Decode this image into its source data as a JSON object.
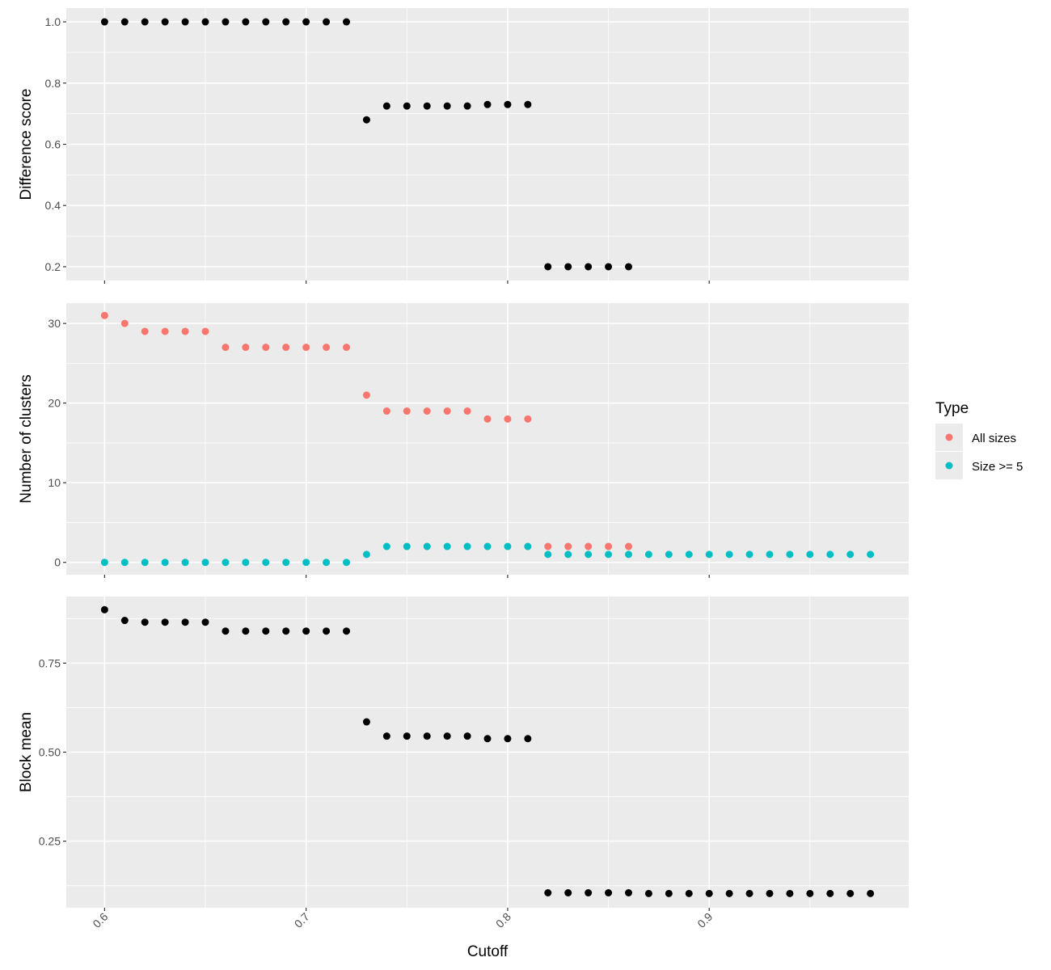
{
  "chart_data": {
    "type": "scatter",
    "xlabel": "Cutoff",
    "x_ticks": [
      "0.6",
      "0.7",
      "0.8",
      "0.9"
    ],
    "x_tick_values": [
      0.6,
      0.7,
      0.8,
      0.9
    ],
    "xlim": [
      0.581,
      0.999
    ],
    "grid": true,
    "legend": {
      "title": "Type",
      "placement": "right",
      "entries": [
        {
          "label": "All sizes",
          "color": "#F8766D"
        },
        {
          "label": "Size >= 5",
          "color": "#00BFC4"
        }
      ]
    },
    "panels": [
      {
        "ylabel": "Difference score",
        "ylim": [
          0.155,
          1.045
        ],
        "y_ticks": [
          "0.2",
          "0.4",
          "0.6",
          "0.8",
          "1.0"
        ],
        "y_tick_values": [
          0.2,
          0.4,
          0.6,
          0.8,
          1.0
        ],
        "series": [
          {
            "color": "#000000",
            "x": [
              0.6,
              0.61,
              0.62,
              0.63,
              0.64,
              0.65,
              0.66,
              0.67,
              0.68,
              0.69,
              0.7,
              0.71,
              0.72,
              0.73,
              0.74,
              0.75,
              0.76,
              0.77,
              0.78,
              0.79,
              0.8,
              0.81,
              0.82,
              0.83,
              0.84,
              0.85,
              0.86
            ],
            "y": [
              1.0,
              1.0,
              1.0,
              1.0,
              1.0,
              1.0,
              1.0,
              1.0,
              1.0,
              1.0,
              1.0,
              1.0,
              1.0,
              0.68,
              0.725,
              0.725,
              0.725,
              0.725,
              0.725,
              0.73,
              0.73,
              0.73,
              0.2,
              0.2,
              0.2,
              0.2,
              0.2
            ]
          }
        ]
      },
      {
        "ylabel": "Number of clusters",
        "ylim": [
          -1.55,
          32.55
        ],
        "y_ticks": [
          "0",
          "10",
          "20",
          "30"
        ],
        "y_tick_values": [
          0,
          10,
          20,
          30
        ],
        "series": [
          {
            "name": "All sizes",
            "color": "#F8766D",
            "x": [
              0.6,
              0.61,
              0.62,
              0.63,
              0.64,
              0.65,
              0.66,
              0.67,
              0.68,
              0.69,
              0.7,
              0.71,
              0.72,
              0.73,
              0.74,
              0.75,
              0.76,
              0.77,
              0.78,
              0.79,
              0.8,
              0.81,
              0.82,
              0.83,
              0.84,
              0.85,
              0.86
            ],
            "y": [
              31,
              30,
              29,
              29,
              29,
              29,
              27,
              27,
              27,
              27,
              27,
              27,
              27,
              21,
              19,
              19,
              19,
              19,
              19,
              18,
              18,
              18,
              2,
              2,
              2,
              2,
              2
            ]
          },
          {
            "name": "Size >= 5",
            "color": "#00BFC4",
            "x": [
              0.6,
              0.61,
              0.62,
              0.63,
              0.64,
              0.65,
              0.66,
              0.67,
              0.68,
              0.69,
              0.7,
              0.71,
              0.72,
              0.73,
              0.74,
              0.75,
              0.76,
              0.77,
              0.78,
              0.79,
              0.8,
              0.81,
              0.82,
              0.83,
              0.84,
              0.85,
              0.86,
              0.87,
              0.88,
              0.89,
              0.9,
              0.91,
              0.92,
              0.93,
              0.94,
              0.95,
              0.96,
              0.97,
              0.98
            ],
            "y": [
              0,
              0,
              0,
              0,
              0,
              0,
              0,
              0,
              0,
              0,
              0,
              0,
              0,
              1,
              2,
              2,
              2,
              2,
              2,
              2,
              2,
              2,
              1,
              1,
              1,
              1,
              1,
              1,
              1,
              1,
              1,
              1,
              1,
              1,
              1,
              1,
              1,
              1,
              1
            ]
          }
        ]
      },
      {
        "ylabel": "Block mean",
        "ylim": [
          0.063,
          0.937
        ],
        "y_ticks": [
          "0.25",
          "0.50",
          "0.75"
        ],
        "y_tick_values": [
          0.25,
          0.5,
          0.75
        ],
        "series": [
          {
            "color": "#000000",
            "x": [
              0.6,
              0.61,
              0.62,
              0.63,
              0.64,
              0.65,
              0.66,
              0.67,
              0.68,
              0.69,
              0.7,
              0.71,
              0.72,
              0.73,
              0.74,
              0.75,
              0.76,
              0.77,
              0.78,
              0.79,
              0.8,
              0.81,
              0.82,
              0.83,
              0.84,
              0.85,
              0.86,
              0.87,
              0.88,
              0.89,
              0.9,
              0.91,
              0.92,
              0.93,
              0.94,
              0.95,
              0.96,
              0.97,
              0.98
            ],
            "y": [
              0.9,
              0.87,
              0.865,
              0.865,
              0.865,
              0.865,
              0.84,
              0.84,
              0.84,
              0.84,
              0.84,
              0.84,
              0.84,
              0.585,
              0.545,
              0.545,
              0.545,
              0.545,
              0.545,
              0.538,
              0.538,
              0.538,
              0.105,
              0.105,
              0.105,
              0.105,
              0.105,
              0.103,
              0.103,
              0.103,
              0.103,
              0.103,
              0.103,
              0.103,
              0.103,
              0.103,
              0.103,
              0.103,
              0.103
            ]
          }
        ]
      }
    ]
  }
}
